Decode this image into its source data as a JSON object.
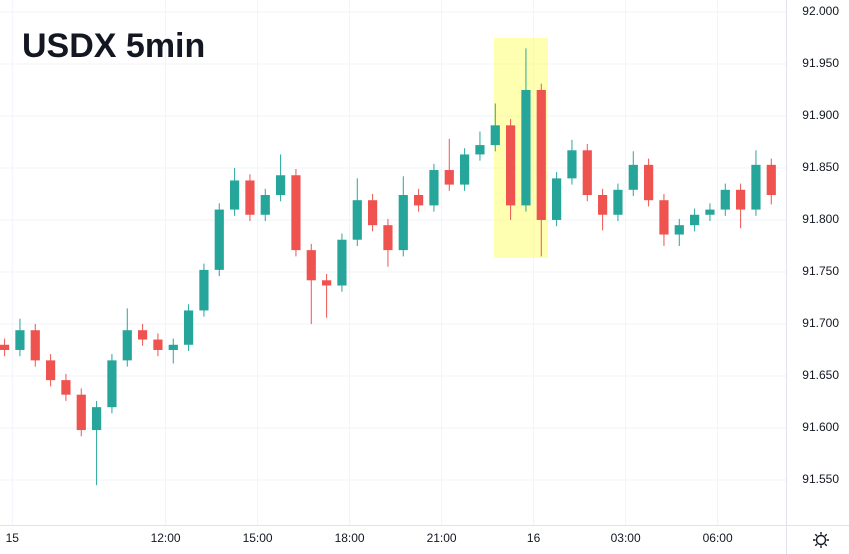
{
  "chart_data": {
    "type": "candlestick",
    "title": "USDX 5min",
    "x": [
      6.75,
      7.25,
      7.75,
      8.25,
      8.75,
      9.25,
      9.75,
      10.25,
      10.75,
      11.25,
      11.75,
      12.25,
      12.75,
      13.25,
      13.75,
      14.25,
      14.75,
      15.25,
      15.75,
      16.25,
      16.75,
      17.25,
      17.75,
      18.25,
      18.75,
      19.25,
      19.75,
      20.25,
      20.75,
      21.25,
      21.75,
      22.25,
      22.75,
      23.25,
      23.75,
      24.25,
      24.75,
      25.25,
      25.75,
      26.25,
      26.75,
      27.25,
      27.75,
      28.25,
      28.75,
      29.25,
      29.75,
      30.25,
      30.75,
      31.25,
      31.75
    ],
    "open": [
      91.68,
      91.675,
      91.694,
      91.665,
      91.646,
      91.632,
      91.598,
      91.62,
      91.665,
      91.694,
      91.685,
      91.675,
      91.68,
      91.713,
      91.752,
      91.81,
      91.838,
      91.805,
      91.824,
      91.843,
      91.771,
      91.742,
      91.737,
      91.781,
      91.819,
      91.795,
      91.771,
      91.824,
      91.814,
      91.848,
      91.834,
      91.863,
      91.872,
      91.891,
      91.814,
      91.925,
      91.8,
      91.84,
      91.867,
      91.824,
      91.805,
      91.829,
      91.853,
      91.819,
      91.786,
      91.795,
      91.805,
      91.81,
      91.829,
      91.81,
      91.853
    ],
    "high": [
      91.686,
      91.705,
      91.7,
      91.671,
      91.652,
      91.638,
      91.626,
      91.671,
      91.715,
      91.7,
      91.691,
      91.686,
      91.719,
      91.758,
      91.816,
      91.85,
      91.844,
      91.83,
      91.863,
      91.849,
      91.777,
      91.748,
      91.787,
      91.84,
      91.825,
      91.801,
      91.842,
      91.83,
      91.854,
      91.878,
      91.869,
      91.885,
      91.912,
      91.897,
      91.965,
      91.931,
      91.846,
      91.877,
      91.873,
      91.83,
      91.835,
      91.866,
      91.859,
      91.825,
      91.801,
      91.811,
      91.816,
      91.835,
      91.835,
      91.867,
      91.859
    ],
    "low": [
      91.669,
      91.669,
      91.659,
      91.64,
      91.626,
      91.592,
      91.545,
      91.614,
      91.659,
      91.679,
      91.669,
      91.662,
      91.674,
      91.707,
      91.746,
      91.804,
      91.799,
      91.799,
      91.818,
      91.765,
      91.7,
      91.706,
      91.731,
      91.775,
      91.789,
      91.755,
      91.765,
      91.808,
      91.808,
      91.828,
      91.828,
      91.857,
      91.866,
      91.8,
      91.808,
      91.765,
      91.794,
      91.834,
      91.818,
      91.79,
      91.799,
      91.823,
      91.813,
      91.775,
      91.775,
      91.789,
      91.799,
      91.804,
      91.792,
      91.804,
      91.815
    ],
    "close": [
      91.675,
      91.694,
      91.665,
      91.646,
      91.632,
      91.598,
      91.62,
      91.665,
      91.694,
      91.685,
      91.675,
      91.68,
      91.713,
      91.752,
      91.81,
      91.838,
      91.805,
      91.824,
      91.843,
      91.771,
      91.742,
      91.737,
      91.781,
      91.819,
      91.795,
      91.771,
      91.824,
      91.814,
      91.848,
      91.834,
      91.863,
      91.872,
      91.891,
      91.814,
      91.925,
      91.8,
      91.84,
      91.867,
      91.824,
      91.805,
      91.829,
      91.853,
      91.819,
      91.786,
      91.795,
      91.805,
      91.81,
      91.829,
      91.81,
      91.853,
      91.824
    ],
    "up_color": "#26a69a",
    "down_color": "#ef5350",
    "xlim": [
      6.6,
      32.23
    ],
    "xticks": [
      {
        "value": 7,
        "label": "15"
      },
      {
        "value": 12,
        "label": "12:00"
      },
      {
        "value": 15,
        "label": "15:00"
      },
      {
        "value": 18,
        "label": "18:00"
      },
      {
        "value": 21,
        "label": "21:00"
      },
      {
        "value": 24,
        "label": "16"
      },
      {
        "value": 27,
        "label": "03:00"
      },
      {
        "value": 30,
        "label": "06:00"
      }
    ],
    "ylim": [
      91.5067,
      92.0115
    ],
    "yticks": [
      {
        "value": 91.55,
        "label": "91.550"
      },
      {
        "value": 91.6,
        "label": "91.600"
      },
      {
        "value": 91.65,
        "label": "91.650"
      },
      {
        "value": 91.7,
        "label": "91.700"
      },
      {
        "value": 91.75,
        "label": "91.750"
      },
      {
        "value": 91.8,
        "label": "91.800"
      },
      {
        "value": 91.85,
        "label": "91.850"
      },
      {
        "value": 91.9,
        "label": "91.900"
      },
      {
        "value": 91.95,
        "label": "91.950"
      },
      {
        "value": 92.0,
        "label": "92.000"
      }
    ],
    "grid": true
  }
}
